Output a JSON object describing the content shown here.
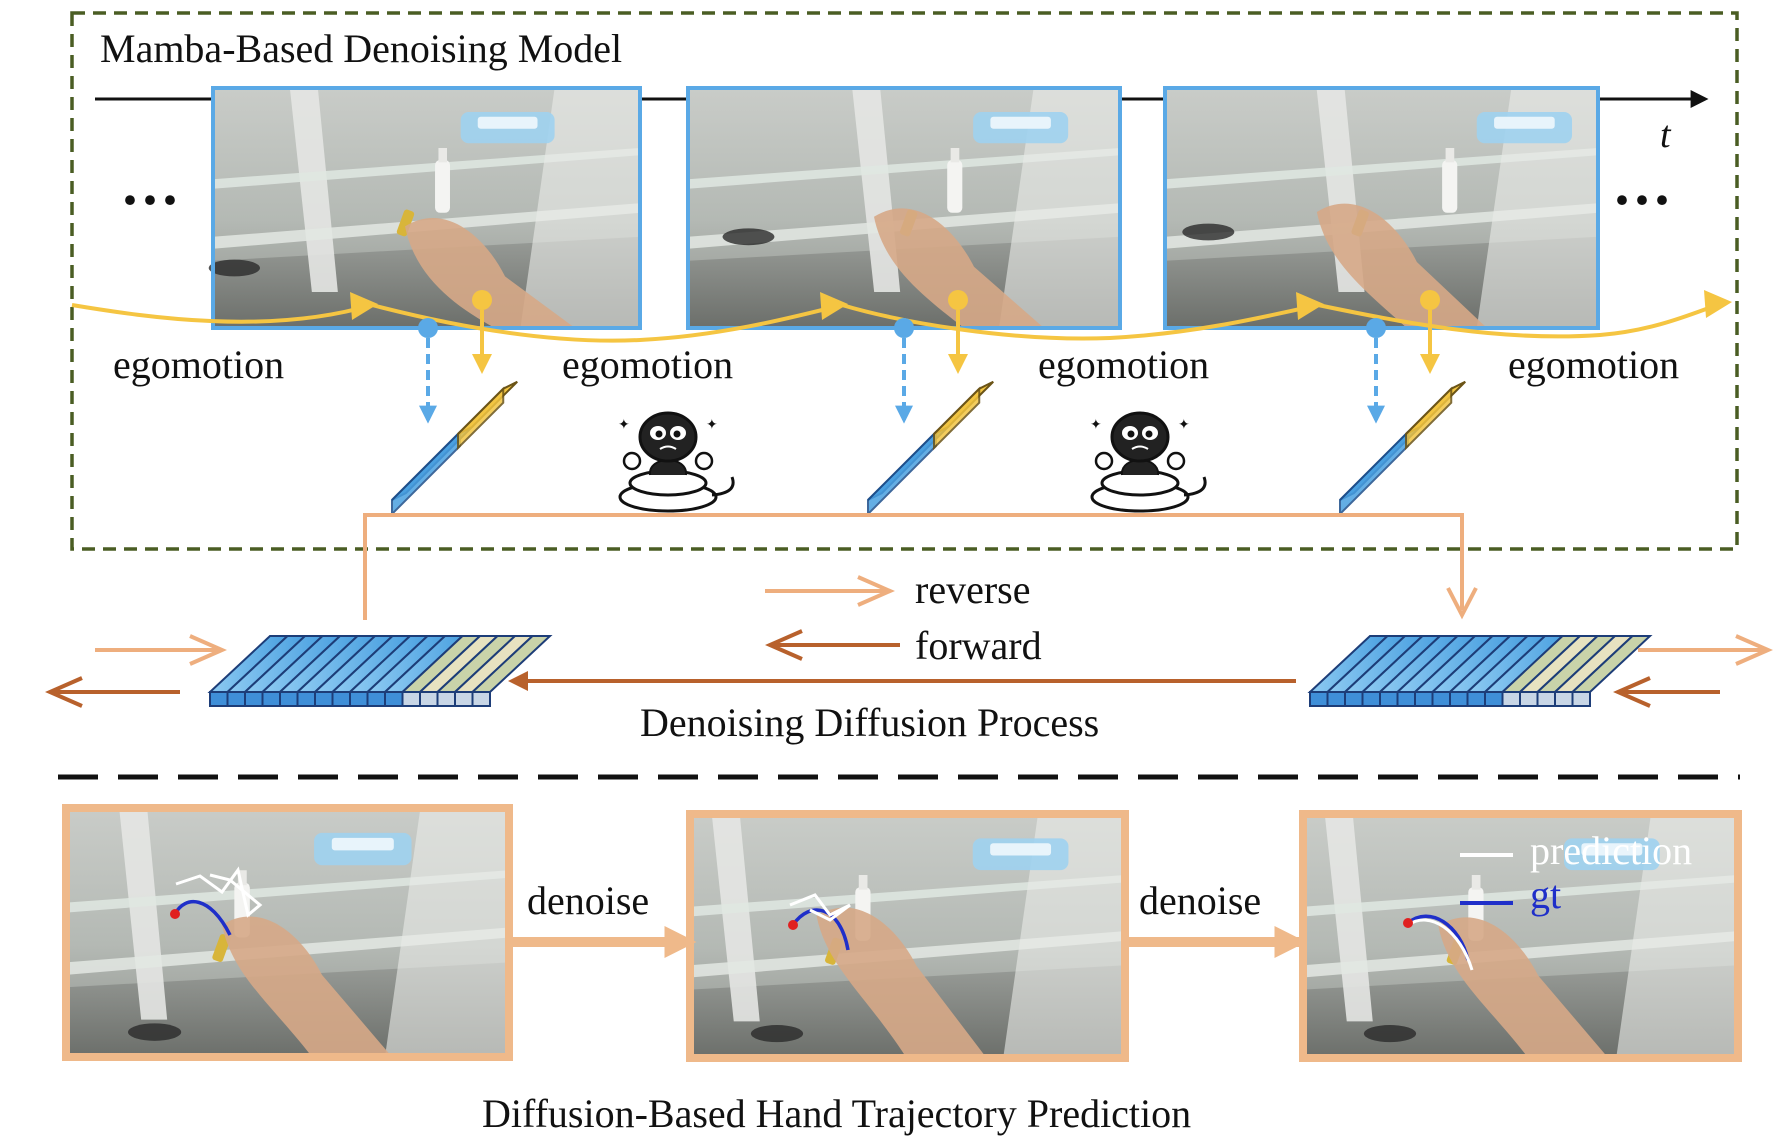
{
  "titles": {
    "model": "Mamba-Based Denoising Model",
    "process": "Denoising Diffusion Process",
    "prediction": "Diffusion-Based Hand Trajectory Prediction"
  },
  "time_axis": {
    "label": "t"
  },
  "ellipsis": "···",
  "egomotion_labels": [
    "egomotion",
    "egomotion",
    "egomotion",
    "egomotion"
  ],
  "frames": [
    {
      "icons": [
        "tissue-box-icon",
        "bottle-icon",
        "hand-icon"
      ]
    },
    {
      "icons": [
        "tissue-box-icon",
        "bottle-icon",
        "hand-icon"
      ]
    },
    {
      "icons": [
        "tissue-box-icon",
        "bottle-icon",
        "hand-icon"
      ]
    }
  ],
  "mascot": {
    "icon": "snake-mascot-icon",
    "count": 2
  },
  "legend_process": {
    "reverse": "reverse",
    "forward": "forward"
  },
  "denoise_labels": [
    "denoise",
    "denoise"
  ],
  "legend_prediction": {
    "prediction": "prediction",
    "gt": "gt"
  },
  "colors": {
    "dashed_border": "#4a5d23",
    "egomotion": "#f5c542",
    "frame_border": "#5aa9e6",
    "token_blue": "#3f8fd8",
    "reverse": "#eeae7e",
    "forward": "#b8612c",
    "bottom_frame": "#efb98a",
    "gt": "#1f2fc9",
    "prediction": "#ffffff"
  }
}
